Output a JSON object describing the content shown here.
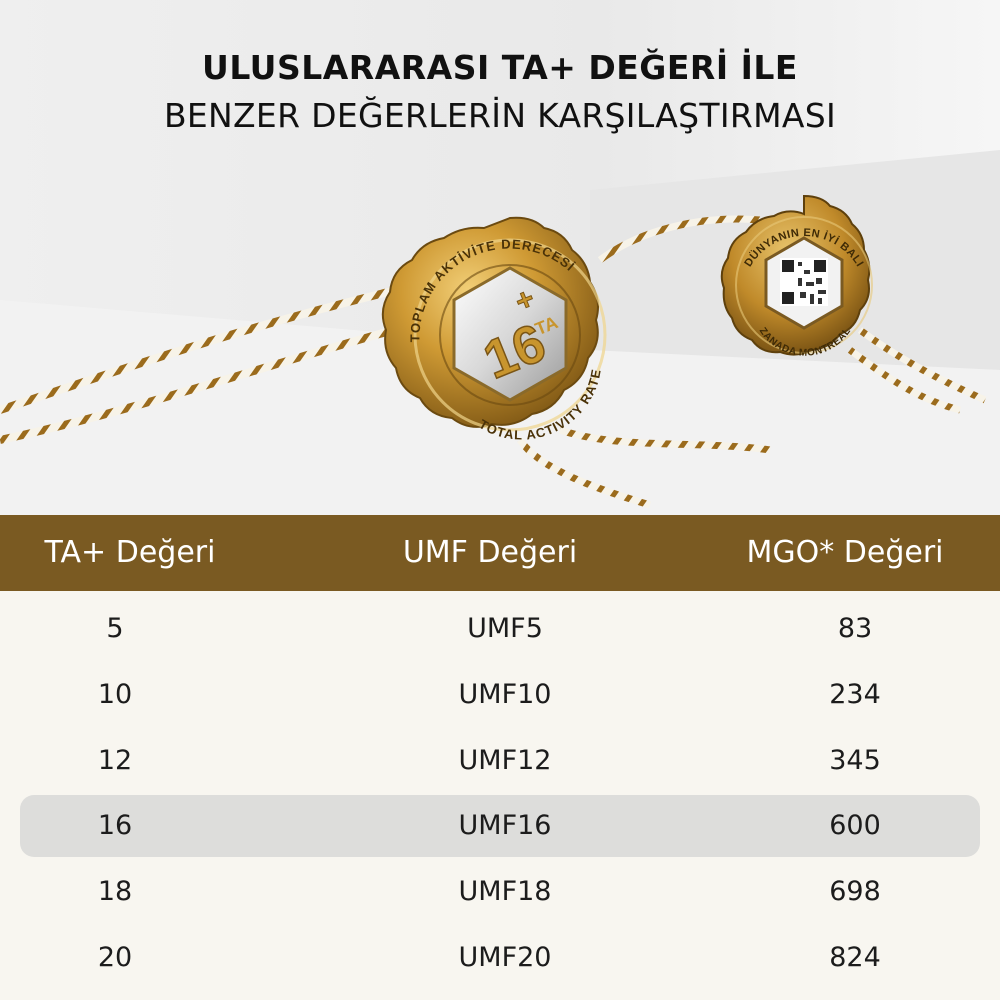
{
  "header": {
    "title_line1": "ULUSLARARASI TA+ DEĞERİ İLE",
    "title_line2": "BENZER DEĞERLERİN KARŞILAŞTIRMASI"
  },
  "seals": {
    "left": {
      "number": "16",
      "plus": "+",
      "ta": "TA",
      "top_text": "TOPLAM AKTİVİTE DERECESİ",
      "bottom_text": "TOTAL ACTIVITY RATE"
    },
    "right": {
      "top_text": "DÜNYANIN EN İYİ BALI",
      "bottom_text": "ZANADA MONTREAL"
    }
  },
  "table": {
    "columns": [
      "TA+ Değeri",
      "UMF Değeri",
      "MGO* Değeri"
    ],
    "highlight_row": 3,
    "rows": [
      [
        "5",
        "UMF5",
        "83"
      ],
      [
        "10",
        "UMF10",
        "234"
      ],
      [
        "12",
        "UMF12",
        "345"
      ],
      [
        "16",
        "UMF16",
        "600"
      ],
      [
        "18",
        "UMF18",
        "698"
      ],
      [
        "20",
        "UMF20",
        "824"
      ]
    ]
  },
  "colors": {
    "header_bg": "#7a5a22",
    "body_bg": "#f8f6f0",
    "highlight_bg": "#dddddb",
    "gold": "#c8952e"
  }
}
